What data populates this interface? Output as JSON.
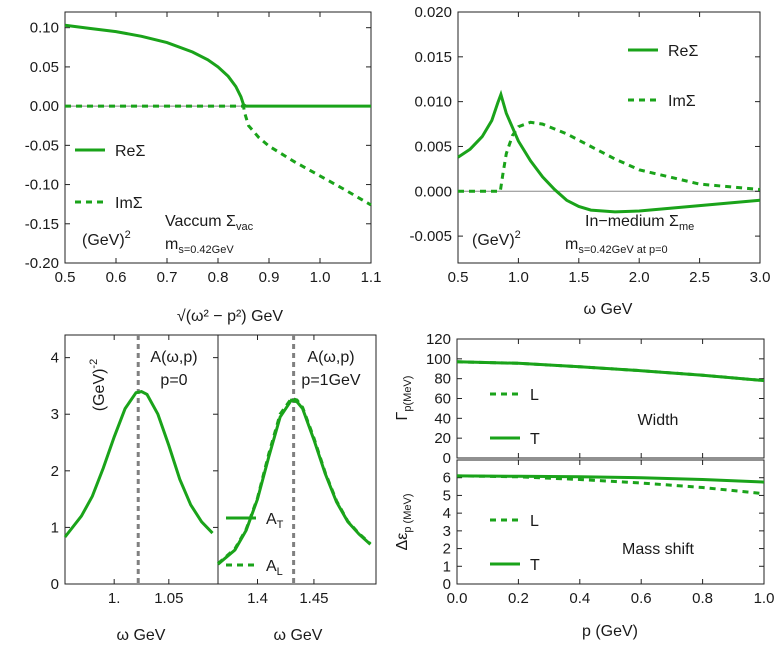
{
  "chart_data": [
    {
      "id": "vac",
      "type": "line",
      "title": "Vaccum Σ_vac",
      "units": "(GeV)^2",
      "ms_label": "m_s=0.42GeV",
      "xlabel": "√(ω² − p²) GeV",
      "xlim": [
        0.5,
        1.1
      ],
      "ylim": [
        -0.2,
        0.12
      ],
      "xticks": [
        0.5,
        0.6,
        0.7,
        0.8,
        0.9,
        1.0,
        1.1
      ],
      "xtick_labels": [
        "0.5",
        "0.6",
        "0.7",
        "0.8",
        "0.9",
        "1.0",
        "1.1"
      ],
      "yticks": [
        -0.2,
        -0.15,
        -0.1,
        -0.05,
        0.0,
        0.05,
        0.1
      ],
      "ytick_labels": [
        "-0.20",
        "-0.15",
        "-0.10",
        "-0.05",
        "0.00",
        "0.05",
        "0.10"
      ],
      "legend": [
        {
          "label": "ReΣ",
          "style": "solid"
        },
        {
          "label": "ImΣ",
          "style": "dashed"
        }
      ],
      "series": [
        {
          "name": "ReΣ",
          "style": "solid",
          "x": [
            0.5,
            0.55,
            0.6,
            0.65,
            0.7,
            0.75,
            0.78,
            0.8,
            0.82,
            0.835,
            0.845,
            0.85,
            0.855,
            0.9,
            1.0,
            1.1
          ],
          "y": [
            0.103,
            0.099,
            0.095,
            0.089,
            0.081,
            0.069,
            0.059,
            0.05,
            0.038,
            0.025,
            0.012,
            0.002,
            0.0,
            0.0,
            0.0,
            0.0
          ]
        },
        {
          "name": "ImΣ",
          "style": "dashed",
          "x": [
            0.5,
            0.85,
            0.852,
            0.86,
            0.88,
            0.9,
            0.95,
            1.0,
            1.05,
            1.1
          ],
          "y": [
            0.0,
            0.0,
            -0.008,
            -0.025,
            -0.04,
            -0.051,
            -0.071,
            -0.089,
            -0.107,
            -0.126
          ]
        }
      ]
    },
    {
      "id": "med",
      "type": "line",
      "title": "In−medium Σ_me",
      "units": "(GeV)^2",
      "ms_label": "m_s=0.42GeV at p=0",
      "xlabel": "ω GeV",
      "xlim": [
        0.5,
        3.0
      ],
      "ylim": [
        -0.008,
        0.02
      ],
      "xticks": [
        0.5,
        1.0,
        1.5,
        2.0,
        2.5,
        3.0
      ],
      "xtick_labels": [
        "0.5",
        "1.0",
        "1.5",
        "2.0",
        "2.5",
        "3.0"
      ],
      "yticks": [
        -0.005,
        0.0,
        0.005,
        0.01,
        0.015,
        0.02
      ],
      "ytick_labels": [
        "-0.005",
        "0.000",
        "0.005",
        "0.010",
        "0.015",
        "0.020"
      ],
      "legend": [
        {
          "label": "ReΣ",
          "style": "solid"
        },
        {
          "label": "ImΣ",
          "style": "dashed"
        }
      ],
      "series": [
        {
          "name": "ReΣ",
          "style": "solid",
          "x": [
            0.5,
            0.6,
            0.7,
            0.78,
            0.83,
            0.855,
            0.9,
            1.0,
            1.1,
            1.2,
            1.3,
            1.4,
            1.5,
            1.6,
            1.8,
            2.0,
            2.5,
            3.0
          ],
          "y": [
            0.0038,
            0.0047,
            0.0061,
            0.0079,
            0.0099,
            0.0108,
            0.0087,
            0.0056,
            0.0034,
            0.0016,
            0.0002,
            -0.001,
            -0.0017,
            -0.0021,
            -0.0023,
            -0.0022,
            -0.0016,
            -0.001
          ]
        },
        {
          "name": "ImΣ",
          "style": "dashed",
          "x": [
            0.5,
            0.85,
            0.87,
            0.9,
            0.95,
            1.0,
            1.1,
            1.2,
            1.4,
            1.6,
            1.8,
            2.0,
            2.5,
            3.0
          ],
          "y": [
            0.0,
            0.0,
            0.0018,
            0.0042,
            0.0062,
            0.0072,
            0.0077,
            0.0075,
            0.0064,
            0.005,
            0.0036,
            0.0024,
            0.0008,
            0.0002
          ]
        }
      ]
    },
    {
      "id": "a0",
      "type": "line",
      "title": "A(ω,p)",
      "subtitle": "p=0",
      "units": "(GeV)^-2",
      "xlabel": "ω GeV",
      "xlim": [
        0.955,
        1.095
      ],
      "ylim": [
        0,
        4.4
      ],
      "xticks": [
        1.0,
        1.05
      ],
      "xtick_labels": [
        "1.",
        "1.05"
      ],
      "yticks": [
        0,
        1,
        2,
        3,
        4
      ],
      "ytick_labels": [
        "0",
        "1",
        "2",
        "3",
        "4"
      ],
      "vline": 1.022,
      "series": [
        {
          "name": "A",
          "style": "solid",
          "x": [
            0.955,
            0.97,
            0.98,
            0.99,
            1.0,
            1.01,
            1.02,
            1.025,
            1.03,
            1.04,
            1.05,
            1.06,
            1.07,
            1.08,
            1.09
          ],
          "y": [
            0.83,
            1.2,
            1.55,
            2.05,
            2.6,
            3.1,
            3.38,
            3.4,
            3.35,
            3.0,
            2.45,
            1.85,
            1.4,
            1.1,
            0.9
          ]
        }
      ]
    },
    {
      "id": "a1",
      "type": "line",
      "title": "A(ω,p)",
      "subtitle": "p=1GeV",
      "xlabel": "ω GeV",
      "xlim": [
        1.365,
        1.505
      ],
      "ylim": [
        0,
        4.4
      ],
      "xticks": [
        1.4,
        1.45
      ],
      "xtick_labels": [
        "1.4",
        "1.45"
      ],
      "vline": 1.432,
      "legend": [
        {
          "label": "A_T",
          "style": "solid"
        },
        {
          "label": "A_L",
          "style": "dashed"
        }
      ],
      "series": [
        {
          "name": "A_T",
          "style": "solid",
          "x": [
            1.365,
            1.38,
            1.39,
            1.4,
            1.41,
            1.42,
            1.43,
            1.435,
            1.44,
            1.45,
            1.46,
            1.47,
            1.48,
            1.49,
            1.5
          ],
          "y": [
            0.35,
            0.6,
            0.95,
            1.5,
            2.25,
            2.95,
            3.25,
            3.22,
            3.1,
            2.55,
            1.95,
            1.45,
            1.1,
            0.88,
            0.7
          ]
        },
        {
          "name": "A_L",
          "style": "dashed",
          "x": [
            1.365,
            1.38,
            1.39,
            1.4,
            1.41,
            1.42,
            1.43,
            1.435,
            1.44,
            1.45,
            1.46,
            1.47,
            1.48,
            1.49,
            1.5
          ],
          "y": [
            0.36,
            0.62,
            0.97,
            1.52,
            2.3,
            3.0,
            3.28,
            3.25,
            3.12,
            2.58,
            1.97,
            1.47,
            1.11,
            0.89,
            0.71
          ]
        }
      ]
    },
    {
      "id": "width",
      "type": "line",
      "title": "Width",
      "ylabel": "Γ_p(MeV)",
      "xlim": [
        0,
        1.0
      ],
      "ylim": [
        0,
        120
      ],
      "yticks": [
        0,
        20,
        40,
        60,
        80,
        100,
        120
      ],
      "ytick_labels": [
        "0",
        "20",
        "40",
        "60",
        "80",
        "100",
        "120"
      ],
      "xticks": [
        0,
        0.2,
        0.4,
        0.6,
        0.8,
        1.0
      ],
      "legend": [
        {
          "label": "L",
          "style": "dashed"
        },
        {
          "label": "T",
          "style": "solid"
        }
      ],
      "series": [
        {
          "name": "T",
          "style": "solid",
          "x": [
            0,
            0.2,
            0.4,
            0.6,
            0.8,
            1.0
          ],
          "y": [
            97,
            95.5,
            92,
            88,
            83.5,
            78
          ]
        },
        {
          "name": "L",
          "style": "dashed",
          "x": [
            0,
            0.2,
            0.4,
            0.6,
            0.8,
            1.0
          ],
          "y": [
            97,
            95.5,
            92,
            88,
            83.5,
            78
          ]
        }
      ]
    },
    {
      "id": "shift",
      "type": "line",
      "title": "Mass shift",
      "ylabel": "Δε_p (MeV)",
      "xlabel": "p (GeV)",
      "xlim": [
        0,
        1.0
      ],
      "ylim": [
        0,
        7
      ],
      "yticks": [
        0,
        1,
        2,
        3,
        4,
        5,
        6
      ],
      "ytick_labels": [
        "0",
        "1",
        "2",
        "3",
        "4",
        "5",
        "6"
      ],
      "xticks": [
        0,
        0.2,
        0.4,
        0.6,
        0.8,
        1.0
      ],
      "xtick_labels": [
        "0.0",
        "0.2",
        "0.4",
        "0.6",
        "0.8",
        "1.0"
      ],
      "legend": [
        {
          "label": "L",
          "style": "dashed"
        },
        {
          "label": "T",
          "style": "solid"
        }
      ],
      "series": [
        {
          "name": "T",
          "style": "solid",
          "x": [
            0,
            0.2,
            0.4,
            0.6,
            0.8,
            1.0
          ],
          "y": [
            6.1,
            6.08,
            6.05,
            6.0,
            5.9,
            5.75
          ]
        },
        {
          "name": "L",
          "style": "dashed",
          "x": [
            0,
            0.2,
            0.4,
            0.6,
            0.8,
            1.0
          ],
          "y": [
            6.1,
            6.05,
            5.9,
            5.7,
            5.45,
            5.1
          ]
        }
      ]
    }
  ],
  "colors": {
    "curve": "#1aa31a",
    "vline": "#808080",
    "zero": "#888888",
    "axis": "#222222"
  }
}
